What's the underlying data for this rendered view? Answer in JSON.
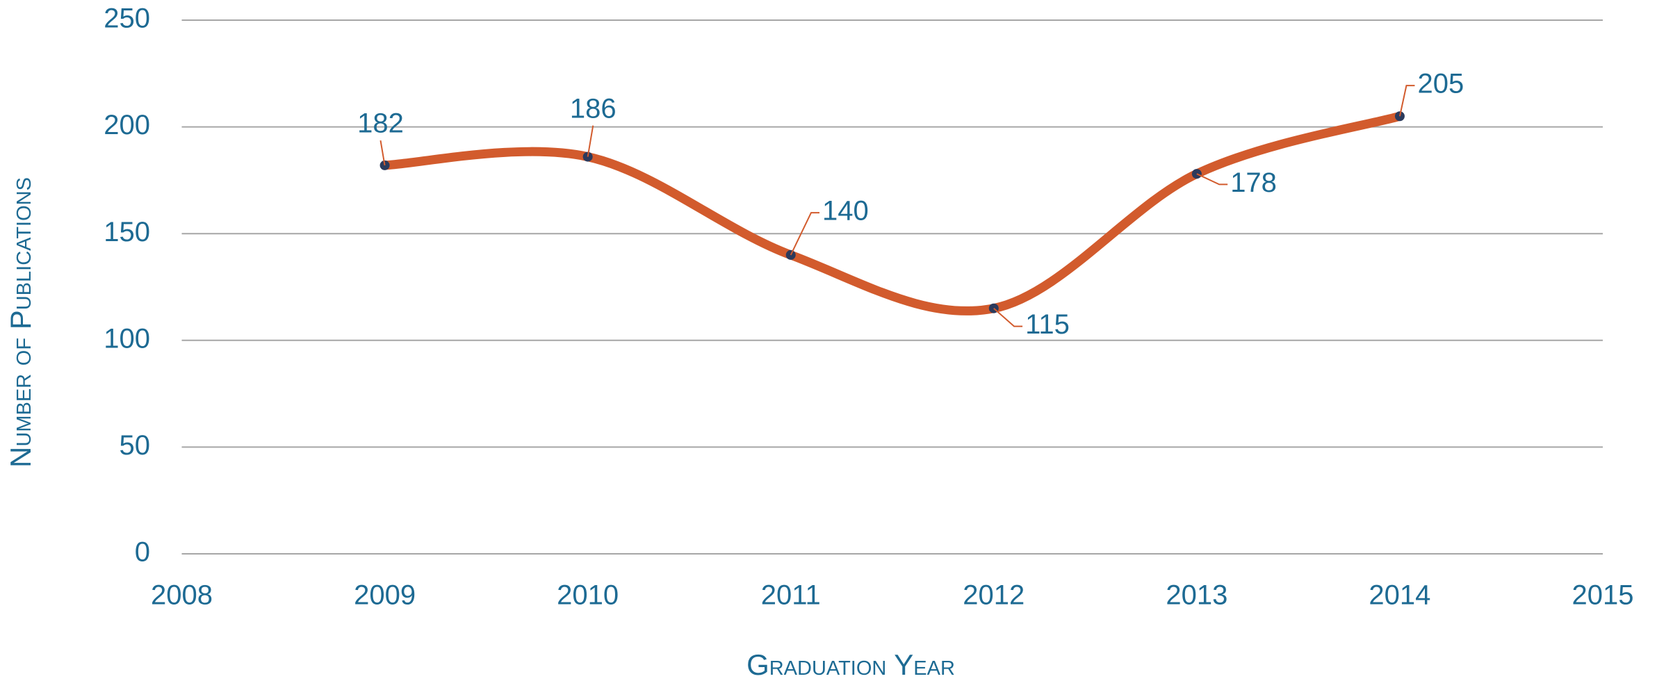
{
  "chart_data": {
    "type": "line",
    "x_label": "Graduation Year",
    "y_label": "Number of Publications",
    "x": [
      2009,
      2010,
      2011,
      2012,
      2013,
      2014
    ],
    "series": [
      {
        "name": "Publications",
        "color": "#d25b2d",
        "marker_color": "#2b3a5c",
        "values": [
          182,
          186,
          140,
          115,
          178,
          205
        ]
      }
    ],
    "xlim": [
      2008,
      2015
    ],
    "xticks": [
      2008,
      2009,
      2010,
      2011,
      2012,
      2013,
      2014,
      2015
    ],
    "ylim": [
      0,
      250
    ],
    "yticks": [
      0,
      50,
      100,
      150,
      200,
      250
    ],
    "grid": true,
    "smooth": true,
    "data_labels": true
  }
}
